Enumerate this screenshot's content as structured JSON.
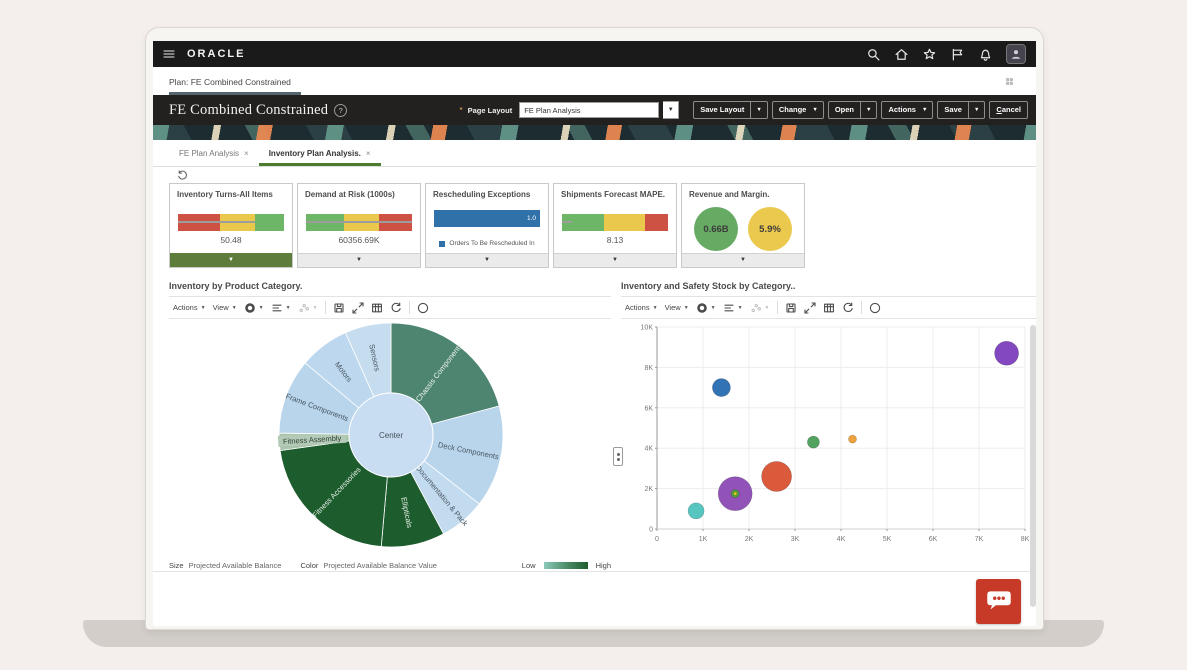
{
  "topbar": {
    "brand": "ORACLE",
    "icons": [
      "search-icon",
      "home-icon",
      "favorites-star-icon",
      "flag-icon",
      "notifications-bell-icon"
    ]
  },
  "plan_bar": {
    "label": "Plan: FE Combined Constrained"
  },
  "header": {
    "title": "FE Combined Constrained",
    "required_marker": "*",
    "page_layout_label": "Page Layout",
    "page_layout_value": "FE Plan Analysis",
    "buttons": [
      {
        "label": "Save Layout",
        "split": true
      },
      {
        "label": "Change",
        "split": false,
        "caret": true
      },
      {
        "label": "Open",
        "split": true
      },
      {
        "label": "Actions",
        "split": false,
        "caret": true
      },
      {
        "label": "Save",
        "split": true
      },
      {
        "label": "Cancel",
        "split": false,
        "caret": false
      }
    ]
  },
  "tabs": [
    {
      "label": "FE Plan Analysis",
      "close": "×",
      "active": false
    },
    {
      "label": "Inventory Plan Analysis.",
      "close": "×",
      "active": true
    }
  ],
  "kpis": [
    {
      "title": "Inventory Turns-All Items",
      "type": "bullet",
      "value": "50.48",
      "segments": [
        {
          "color": "#cd5244",
          "pct": 40
        },
        {
          "color": "#e9c84b",
          "pct": 33
        },
        {
          "color": "#6db668",
          "pct": 27
        }
      ],
      "marker_pct": 73,
      "footer_selected": true
    },
    {
      "title": "Demand at Risk (1000s)",
      "type": "bullet",
      "value": "60356.69K",
      "segments": [
        {
          "color": "#6db668",
          "pct": 36
        },
        {
          "color": "#e9c84b",
          "pct": 33
        },
        {
          "color": "#cd5244",
          "pct": 31
        }
      ],
      "marker_pct": 100,
      "footer_selected": false
    },
    {
      "title": "Rescheduling Exceptions",
      "type": "bar",
      "bar_color": "#3071a9",
      "bar_value": "1.0",
      "bar_pct": 100,
      "legend": "Orders To Be Rescheduled In",
      "footer_selected": false
    },
    {
      "title": "Shipments Forecast MAPE.",
      "type": "bullet",
      "value": "8.13",
      "segments": [
        {
          "color": "#6db668",
          "pct": 40
        },
        {
          "color": "#e9c84b",
          "pct": 38
        },
        {
          "color": "#cd5244",
          "pct": 22
        }
      ],
      "marker_pct": 9,
      "footer_selected": false
    },
    {
      "title": "Revenue and Margin.",
      "type": "circles",
      "circles": [
        {
          "value": "0.66B",
          "color": "#67aa63"
        },
        {
          "value": "5.9%",
          "color": "#ebc84e"
        }
      ],
      "footer_selected": false
    }
  ],
  "toolbar": {
    "actions_label": "Actions",
    "view_label": "View",
    "dropdown_icons": [
      {
        "icon": "donut-chart-icon",
        "disabled": false
      },
      {
        "icon": "bar-format-icon",
        "disabled": false
      },
      {
        "icon": "scatter-chart-icon",
        "disabled": true
      }
    ],
    "action_icons": [
      "export-icon",
      "expand-icon",
      "table-view-icon",
      "restore-icon"
    ],
    "help_icon": "help-icon"
  },
  "panels": {
    "left": {
      "title": "Inventory by Product Category."
    },
    "right": {
      "title": "Inventory and Safety Stock by Category.."
    }
  },
  "legend": {
    "size_label": "Size",
    "size_value": "Projected Available Balance",
    "color_label": "Color",
    "color_value": "Projected Available Balance Value",
    "low": "Low",
    "high": "High"
  },
  "chart_data": [
    {
      "type": "sunburst",
      "title": "Inventory by Product Category.",
      "center_label": "Center",
      "center_color": "#c8ddf1",
      "size_legend": "Projected Available Balance",
      "color_legend": "Projected Available Balance Value",
      "slices": [
        {
          "label": "Chassis Components",
          "start": 0,
          "end": 75,
          "color": "#4e8570",
          "text": "#eef4ef"
        },
        {
          "label": "Deck Components",
          "start": 75,
          "end": 128,
          "color": "#b9d5ec",
          "text": "#475663"
        },
        {
          "label": "Documentation & Pack",
          "start": 128,
          "end": 152,
          "color": "#c3dbee",
          "text": "#475663"
        },
        {
          "label": "Ellipticals",
          "start": 152,
          "end": 185,
          "color": "#1d5c2d",
          "text": "#e9f1e9"
        },
        {
          "label": "Fitness Accessories",
          "start": 185,
          "end": 262,
          "color": "#1d5c2d",
          "text": "#e9f1e9"
        },
        {
          "label": "Fitness Assembly",
          "start": 262,
          "end": 271,
          "color": "#a9c3ac",
          "text": "#33423a",
          "label_bg": "#b3cab6"
        },
        {
          "label": "Frame Components",
          "start": 271,
          "end": 310,
          "color": "#b9d5ec",
          "text": "#475663"
        },
        {
          "label": "Motors",
          "start": 310,
          "end": 336,
          "color": "#bdd8ee",
          "text": "#475663"
        },
        {
          "label": "Sensors",
          "start": 336,
          "end": 360,
          "color": "#c6ddf0",
          "text": "#475663"
        }
      ]
    },
    {
      "type": "bubble",
      "title": "Inventory and Safety Stock by Category..",
      "x_max": 8000,
      "y_max": 10000,
      "x_ticks": [
        {
          "v": 0,
          "t": "0"
        },
        {
          "v": 1000,
          "t": "1K"
        },
        {
          "v": 2000,
          "t": "2K"
        },
        {
          "v": 3000,
          "t": "3K"
        },
        {
          "v": 4000,
          "t": "4K"
        },
        {
          "v": 5000,
          "t": "5K"
        },
        {
          "v": 6000,
          "t": "6K"
        },
        {
          "v": 7000,
          "t": "7K"
        },
        {
          "v": 8000,
          "t": "8K"
        }
      ],
      "y_ticks": [
        {
          "v": 0,
          "t": "0"
        },
        {
          "v": 2000,
          "t": "2K"
        },
        {
          "v": 4000,
          "t": "4K"
        },
        {
          "v": 6000,
          "t": "6K"
        },
        {
          "v": 8000,
          "t": "8K"
        },
        {
          "v": 10000,
          "t": "10K"
        }
      ],
      "grid": true,
      "points": [
        {
          "x": 850,
          "y": 900,
          "r": 8,
          "color": "#57c6c0"
        },
        {
          "x": 1700,
          "y": 1750,
          "r": 17,
          "color": "#9153b8"
        },
        {
          "x": 1700,
          "y": 1750,
          "r": 4,
          "color": "#54a33c"
        },
        {
          "x": 1700,
          "y": 1750,
          "r": 1.7,
          "color": "#d9ca25"
        },
        {
          "x": 2600,
          "y": 2600,
          "r": 15,
          "color": "#dc5a3c"
        },
        {
          "x": 3400,
          "y": 4300,
          "r": 6,
          "color": "#52a360"
        },
        {
          "x": 4250,
          "y": 4450,
          "r": 4,
          "color": "#eea13c"
        },
        {
          "x": 1400,
          "y": 7000,
          "r": 9,
          "color": "#3173b4"
        },
        {
          "x": 7600,
          "y": 8700,
          "r": 12,
          "color": "#8347c0"
        }
      ]
    }
  ]
}
